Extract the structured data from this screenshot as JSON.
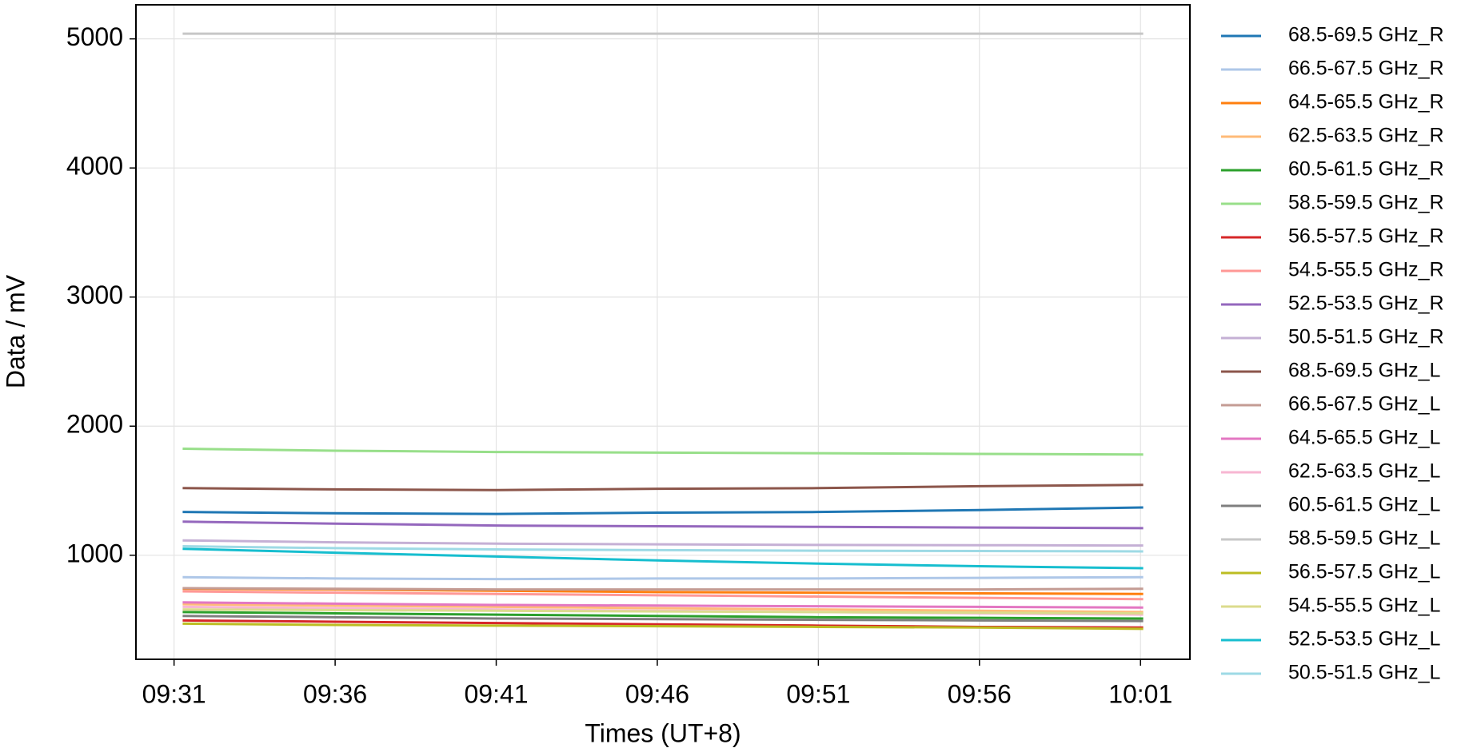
{
  "chart_data": {
    "type": "line",
    "xlabel": "Times (UT+8)",
    "ylabel": "Data / mV",
    "x": [
      "09:31:16",
      "09:36",
      "09:41",
      "09:46",
      "09:51",
      "09:56",
      "10:01:05"
    ],
    "xlim": [
      "09:29:49",
      "10:02:32"
    ],
    "xticks": [
      "09:31",
      "09:36",
      "09:41",
      "09:46",
      "09:51",
      "09:56",
      "10:01"
    ],
    "ylim": [
      194,
      5264
    ],
    "yticks": [
      1000,
      2000,
      3000,
      4000,
      5000
    ],
    "grid": true,
    "legend": "outside right",
    "series": [
      {
        "name": "68.5-69.5 GHz_R",
        "color": "#1f77b4",
        "values": [
          1335,
          1325,
          1320,
          1330,
          1335,
          1350,
          1370
        ]
      },
      {
        "name": "66.5-67.5 GHz_R",
        "color": "#aec7e8",
        "values": [
          830,
          820,
          815,
          820,
          820,
          825,
          830
        ]
      },
      {
        "name": "64.5-65.5 GHz_R",
        "color": "#ff7f0e",
        "values": [
          740,
          735,
          725,
          715,
          710,
          705,
          700
        ]
      },
      {
        "name": "62.5-63.5 GHz_R",
        "color": "#ffbb78",
        "values": [
          620,
          610,
          600,
          590,
          580,
          570,
          560
        ]
      },
      {
        "name": "60.5-61.5 GHz_R",
        "color": "#2ca02c",
        "values": [
          560,
          550,
          540,
          530,
          520,
          515,
          510
        ]
      },
      {
        "name": "58.5-59.5 GHz_R",
        "color": "#98df8a",
        "values": [
          1825,
          1810,
          1800,
          1795,
          1790,
          1785,
          1780
        ]
      },
      {
        "name": "56.5-57.5 GHz_R",
        "color": "#d62728",
        "values": [
          495,
          485,
          475,
          465,
          455,
          445,
          440
        ]
      },
      {
        "name": "54.5-55.5 GHz_R",
        "color": "#ff9896",
        "values": [
          720,
          710,
          700,
          690,
          680,
          670,
          660
        ]
      },
      {
        "name": "52.5-53.5 GHz_R",
        "color": "#9467bd",
        "values": [
          1260,
          1245,
          1230,
          1225,
          1220,
          1215,
          1210
        ]
      },
      {
        "name": "50.5-51.5 GHz_R",
        "color": "#c5b0d5",
        "values": [
          1115,
          1100,
          1090,
          1085,
          1080,
          1078,
          1075
        ]
      },
      {
        "name": "68.5-69.5 GHz_L",
        "color": "#8c564b",
        "values": [
          1520,
          1510,
          1505,
          1515,
          1520,
          1535,
          1545
        ]
      },
      {
        "name": "66.5-67.5 GHz_L",
        "color": "#c49c94",
        "values": [
          745,
          740,
          735,
          735,
          735,
          735,
          740
        ]
      },
      {
        "name": "64.5-65.5 GHz_L",
        "color": "#e377c2",
        "values": [
          635,
          625,
          615,
          610,
          605,
          600,
          595
        ]
      },
      {
        "name": "62.5-63.5 GHz_L",
        "color": "#f7b6d2",
        "values": [
          600,
          590,
          580,
          570,
          560,
          550,
          540
        ]
      },
      {
        "name": "60.5-61.5 GHz_L",
        "color": "#7f7f7f",
        "values": [
          530,
          520,
          510,
          505,
          500,
          495,
          490
        ]
      },
      {
        "name": "58.5-59.5 GHz_L",
        "color": "#c7c7c7",
        "values": [
          5040,
          5040,
          5040,
          5040,
          5040,
          5040,
          5040
        ]
      },
      {
        "name": "56.5-57.5 GHz_L",
        "color": "#bcbd22",
        "values": [
          470,
          460,
          455,
          450,
          445,
          440,
          430
        ]
      },
      {
        "name": "54.5-55.5 GHz_L",
        "color": "#dbdb8d",
        "values": [
          580,
          575,
          570,
          565,
          560,
          555,
          550
        ]
      },
      {
        "name": "52.5-53.5 GHz_L",
        "color": "#17becf",
        "values": [
          1050,
          1020,
          990,
          960,
          935,
          915,
          900
        ]
      },
      {
        "name": "50.5-51.5 GHz_L",
        "color": "#9edae5",
        "values": [
          1070,
          1055,
          1045,
          1040,
          1035,
          1033,
          1030
        ]
      }
    ]
  }
}
